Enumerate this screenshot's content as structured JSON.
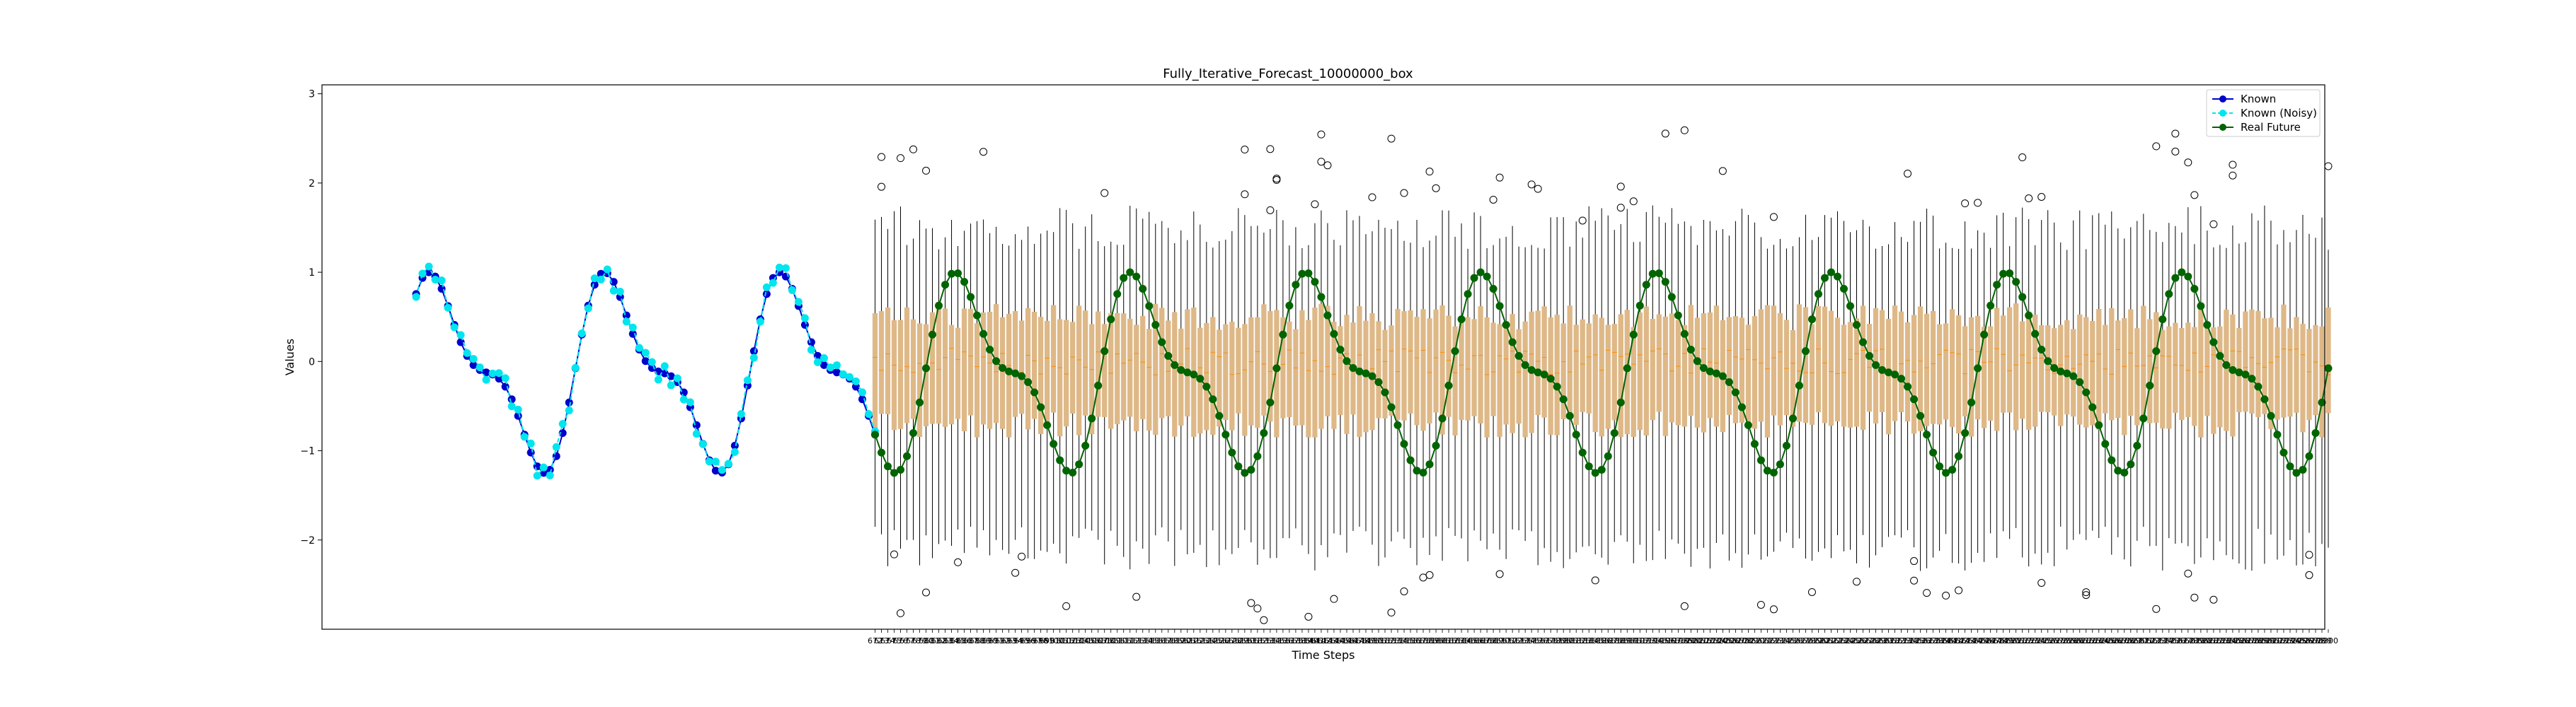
{
  "chart_data": {
    "type": "line",
    "title": "Fully_Iterative_Forecast_10000000_box",
    "xlabel": "Time Steps",
    "ylabel": "Values",
    "ylim": [
      -3.0,
      3.1
    ],
    "yticks": [
      -2,
      -1,
      0,
      1,
      2,
      3
    ],
    "legend_position": "top-right",
    "grid": false,
    "known_x": [
      0,
      72
    ],
    "forecast_x": [
      72,
      300
    ],
    "tick_label_prefix": "6",
    "series": [
      {
        "name": "Known",
        "color": "#0000cd",
        "marker": "circle",
        "line": "solid",
        "x_range": [
          0,
          72
        ]
      },
      {
        "name": "Known (Noisy)",
        "color": "#00e5ee",
        "marker": "circle",
        "line": "dashed",
        "x_range": [
          0,
          72
        ]
      },
      {
        "name": "Real Future",
        "color": "#006400",
        "marker": "circle",
        "line": "solid",
        "x_range": [
          72,
          300
        ]
      }
    ],
    "box_color": "#deb887",
    "box_median": 0.0,
    "box_q1_approx": -0.7,
    "box_q3_approx": 0.5,
    "box_whisker_low_approx": -2.1,
    "box_whisker_high_approx": 1.5,
    "signal_min": -1.25,
    "signal_max": 1.0
  }
}
